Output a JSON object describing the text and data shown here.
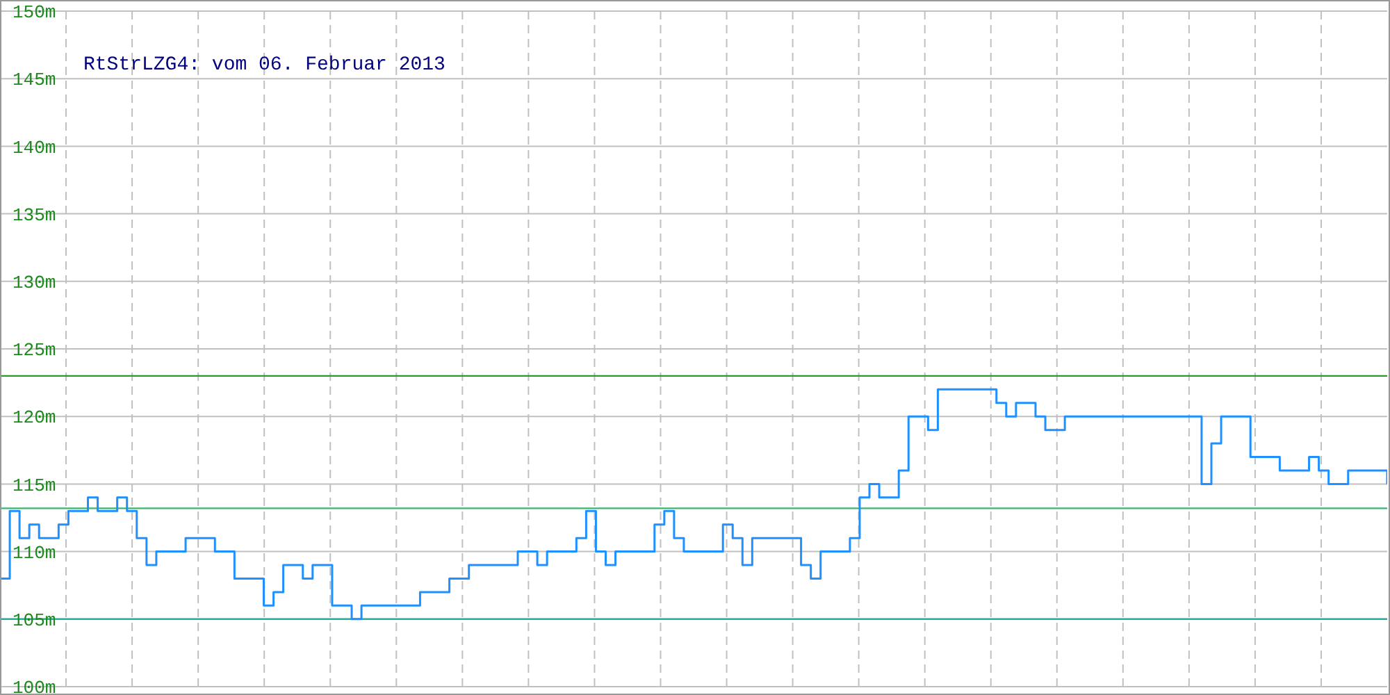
{
  "chart_data": {
    "type": "step",
    "title": "RtStrLZG4: vom 06. Februar 2013",
    "categories": [
      null,
      null,
      null,
      null,
      null,
      null,
      null,
      null,
      null,
      null,
      null,
      null,
      null,
      null,
      null,
      null,
      null,
      null,
      null,
      null,
      null,
      null,
      null,
      null,
      null,
      null,
      null,
      null,
      null,
      null,
      null,
      null,
      null,
      null,
      null,
      null,
      null,
      null,
      null,
      null,
      null,
      null,
      null,
      null,
      null,
      null,
      null,
      null,
      null,
      null,
      null,
      null,
      null,
      null,
      null,
      null,
      null,
      null,
      null,
      null,
      null,
      null,
      null,
      null,
      null,
      null,
      null,
      null,
      null,
      null,
      null,
      null,
      null,
      null,
      null,
      null,
      null,
      null,
      null,
      null,
      null,
      null,
      null,
      null,
      null,
      null,
      null,
      null,
      null,
      null,
      null,
      null,
      null,
      null,
      null,
      null,
      null,
      null,
      null,
      null,
      null,
      null,
      null,
      null,
      null,
      null,
      null,
      null,
      null,
      null,
      null,
      null,
      null,
      null,
      null,
      null,
      null,
      null,
      null,
      null,
      null,
      null,
      null,
      null,
      null,
      null,
      null,
      null,
      null,
      null,
      null,
      null,
      null,
      null,
      null,
      null,
      null,
      null,
      null,
      null,
      null,
      null,
      null
    ],
    "series": [
      {
        "color": "#1e90ff",
        "values": [
          108,
          113,
          111,
          112,
          111,
          111,
          112,
          113,
          113,
          114,
          113,
          113,
          114,
          113,
          111,
          109,
          110,
          110,
          110,
          111,
          111,
          111,
          110,
          110,
          108,
          108,
          108,
          106,
          107,
          109,
          109,
          108,
          109,
          109,
          106,
          106,
          105,
          106,
          106,
          106,
          106,
          106,
          106,
          107,
          107,
          107,
          108,
          108,
          109,
          109,
          109,
          109,
          109,
          110,
          110,
          109,
          110,
          110,
          110,
          111,
          113,
          110,
          109,
          110,
          110,
          110,
          110,
          112,
          113,
          111,
          110,
          110,
          110,
          110,
          112,
          111,
          109,
          111,
          111,
          111,
          111,
          111,
          109,
          108,
          110,
          110,
          110,
          111,
          114,
          115,
          114,
          114,
          116,
          120,
          120,
          119,
          122,
          122,
          122,
          122,
          122,
          122,
          121,
          120,
          121,
          121,
          120,
          119,
          119,
          120,
          120,
          120,
          120,
          120,
          120,
          120,
          120,
          120,
          120,
          120,
          120,
          120,
          120,
          115,
          118,
          120,
          120,
          120,
          117,
          117,
          117,
          116,
          116,
          116,
          117,
          116,
          115,
          115,
          116,
          116,
          116,
          116,
          115
        ]
      }
    ],
    "ylim": [
      100,
      150
    ],
    "yticks": [
      {
        "value": 100,
        "label": "100m"
      },
      {
        "value": 105,
        "label": "105m"
      },
      {
        "value": 110,
        "label": "110m"
      },
      {
        "value": 115,
        "label": "115m"
      },
      {
        "value": 120,
        "label": "120m"
      },
      {
        "value": 125,
        "label": "125m"
      },
      {
        "value": 130,
        "label": "130m"
      },
      {
        "value": 135,
        "label": "135m"
      },
      {
        "value": 140,
        "label": "140m"
      },
      {
        "value": 145,
        "label": "145m"
      },
      {
        "value": 150,
        "label": "150m"
      }
    ],
    "grid": true,
    "ref_lines": [
      {
        "axis": "y",
        "value": 123,
        "color": "#2a9a2a"
      },
      {
        "axis": "y",
        "value": 113.2,
        "color": "#3cb371"
      },
      {
        "axis": "y",
        "value": 105,
        "color": "#20b2a0"
      }
    ]
  }
}
